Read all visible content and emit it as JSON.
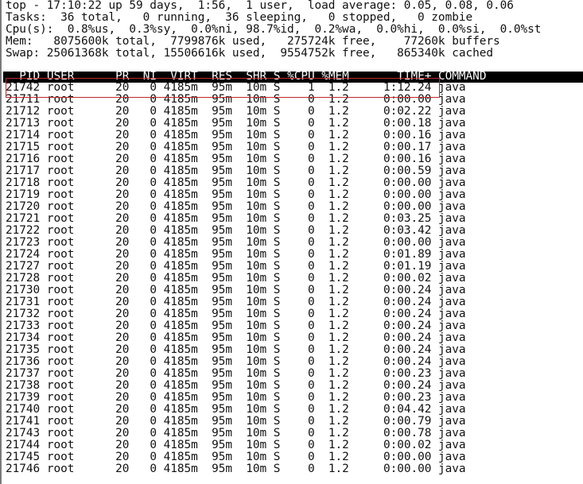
{
  "summary": {
    "uptime_line": "top - 17:10:22 up 59 days,  1:56,  1 user,  load average: 0.05, 0.08, 0.06",
    "tasks_line": "Tasks:  36 total,   0 running,  36 sleeping,   0 stopped,   0 zombie",
    "cpu_line": "Cpu(s):  0.8%us,  0.3%sy,  0.0%ni, 98.7%id,  0.2%wa,  0.0%hi,  0.0%si,  0.0%st",
    "mem_line": "Mem:   8075600k total,  7799876k used,   275724k free,    77260k buffers",
    "swap_line": "Swap: 25061368k total, 15506616k used,  9554752k free,   865340k cached"
  },
  "columns": [
    "PID",
    "USER",
    "PR",
    "NI",
    "VIRT",
    "RES",
    "SHR",
    "S",
    "%CPU",
    "%MEM",
    "TIME+",
    "COMMAND"
  ],
  "highlight_color": "#c0282d",
  "processes": [
    [
      "21742",
      "root",
      "20",
      "0",
      "4185m",
      "95m",
      "10m",
      "S",
      "1",
      "1.2",
      "1:12.24",
      "java"
    ],
    [
      "21711",
      "root",
      "20",
      "0",
      "4185m",
      "95m",
      "10m",
      "S",
      "0",
      "1.2",
      "0:00.00",
      "java"
    ],
    [
      "21712",
      "root",
      "20",
      "0",
      "4185m",
      "95m",
      "10m",
      "S",
      "0",
      "1.2",
      "0:02.22",
      "java"
    ],
    [
      "21713",
      "root",
      "20",
      "0",
      "4185m",
      "95m",
      "10m",
      "S",
      "0",
      "1.2",
      "0:00.18",
      "java"
    ],
    [
      "21714",
      "root",
      "20",
      "0",
      "4185m",
      "95m",
      "10m",
      "S",
      "0",
      "1.2",
      "0:00.16",
      "java"
    ],
    [
      "21715",
      "root",
      "20",
      "0",
      "4185m",
      "95m",
      "10m",
      "S",
      "0",
      "1.2",
      "0:00.17",
      "java"
    ],
    [
      "21716",
      "root",
      "20",
      "0",
      "4185m",
      "95m",
      "10m",
      "S",
      "0",
      "1.2",
      "0:00.16",
      "java"
    ],
    [
      "21717",
      "root",
      "20",
      "0",
      "4185m",
      "95m",
      "10m",
      "S",
      "0",
      "1.2",
      "0:00.59",
      "java"
    ],
    [
      "21718",
      "root",
      "20",
      "0",
      "4185m",
      "95m",
      "10m",
      "S",
      "0",
      "1.2",
      "0:00.00",
      "java"
    ],
    [
      "21719",
      "root",
      "20",
      "0",
      "4185m",
      "95m",
      "10m",
      "S",
      "0",
      "1.2",
      "0:00.00",
      "java"
    ],
    [
      "21720",
      "root",
      "20",
      "0",
      "4185m",
      "95m",
      "10m",
      "S",
      "0",
      "1.2",
      "0:00.00",
      "java"
    ],
    [
      "21721",
      "root",
      "20",
      "0",
      "4185m",
      "95m",
      "10m",
      "S",
      "0",
      "1.2",
      "0:03.25",
      "java"
    ],
    [
      "21722",
      "root",
      "20",
      "0",
      "4185m",
      "95m",
      "10m",
      "S",
      "0",
      "1.2",
      "0:03.42",
      "java"
    ],
    [
      "21723",
      "root",
      "20",
      "0",
      "4185m",
      "95m",
      "10m",
      "S",
      "0",
      "1.2",
      "0:00.00",
      "java"
    ],
    [
      "21724",
      "root",
      "20",
      "0",
      "4185m",
      "95m",
      "10m",
      "S",
      "0",
      "1.2",
      "0:01.89",
      "java"
    ],
    [
      "21727",
      "root",
      "20",
      "0",
      "4185m",
      "95m",
      "10m",
      "S",
      "0",
      "1.2",
      "0:01.19",
      "java"
    ],
    [
      "21728",
      "root",
      "20",
      "0",
      "4185m",
      "95m",
      "10m",
      "S",
      "0",
      "1.2",
      "0:00.02",
      "java"
    ],
    [
      "21730",
      "root",
      "20",
      "0",
      "4185m",
      "95m",
      "10m",
      "S",
      "0",
      "1.2",
      "0:00.24",
      "java"
    ],
    [
      "21731",
      "root",
      "20",
      "0",
      "4185m",
      "95m",
      "10m",
      "S",
      "0",
      "1.2",
      "0:00.24",
      "java"
    ],
    [
      "21732",
      "root",
      "20",
      "0",
      "4185m",
      "95m",
      "10m",
      "S",
      "0",
      "1.2",
      "0:00.24",
      "java"
    ],
    [
      "21733",
      "root",
      "20",
      "0",
      "4185m",
      "95m",
      "10m",
      "S",
      "0",
      "1.2",
      "0:00.24",
      "java"
    ],
    [
      "21734",
      "root",
      "20",
      "0",
      "4185m",
      "95m",
      "10m",
      "S",
      "0",
      "1.2",
      "0:00.24",
      "java"
    ],
    [
      "21735",
      "root",
      "20",
      "0",
      "4185m",
      "95m",
      "10m",
      "S",
      "0",
      "1.2",
      "0:00.24",
      "java"
    ],
    [
      "21736",
      "root",
      "20",
      "0",
      "4185m",
      "95m",
      "10m",
      "S",
      "0",
      "1.2",
      "0:00.24",
      "java"
    ],
    [
      "21737",
      "root",
      "20",
      "0",
      "4185m",
      "95m",
      "10m",
      "S",
      "0",
      "1.2",
      "0:00.23",
      "java"
    ],
    [
      "21738",
      "root",
      "20",
      "0",
      "4185m",
      "95m",
      "10m",
      "S",
      "0",
      "1.2",
      "0:00.24",
      "java"
    ],
    [
      "21739",
      "root",
      "20",
      "0",
      "4185m",
      "95m",
      "10m",
      "S",
      "0",
      "1.2",
      "0:00.23",
      "java"
    ],
    [
      "21740",
      "root",
      "20",
      "0",
      "4185m",
      "95m",
      "10m",
      "S",
      "0",
      "1.2",
      "0:04.42",
      "java"
    ],
    [
      "21741",
      "root",
      "20",
      "0",
      "4185m",
      "95m",
      "10m",
      "S",
      "0",
      "1.2",
      "0:00.79",
      "java"
    ],
    [
      "21743",
      "root",
      "20",
      "0",
      "4185m",
      "95m",
      "10m",
      "S",
      "0",
      "1.2",
      "0:00.78",
      "java"
    ],
    [
      "21744",
      "root",
      "20",
      "0",
      "4185m",
      "95m",
      "10m",
      "S",
      "0",
      "1.2",
      "0:00.02",
      "java"
    ],
    [
      "21745",
      "root",
      "20",
      "0",
      "4185m",
      "95m",
      "10m",
      "S",
      "0",
      "1.2",
      "0:00.00",
      "java"
    ],
    [
      "21746",
      "root",
      "20",
      "0",
      "4185m",
      "95m",
      "10m",
      "S",
      "0",
      "1.2",
      "0:00.00",
      "java"
    ]
  ]
}
